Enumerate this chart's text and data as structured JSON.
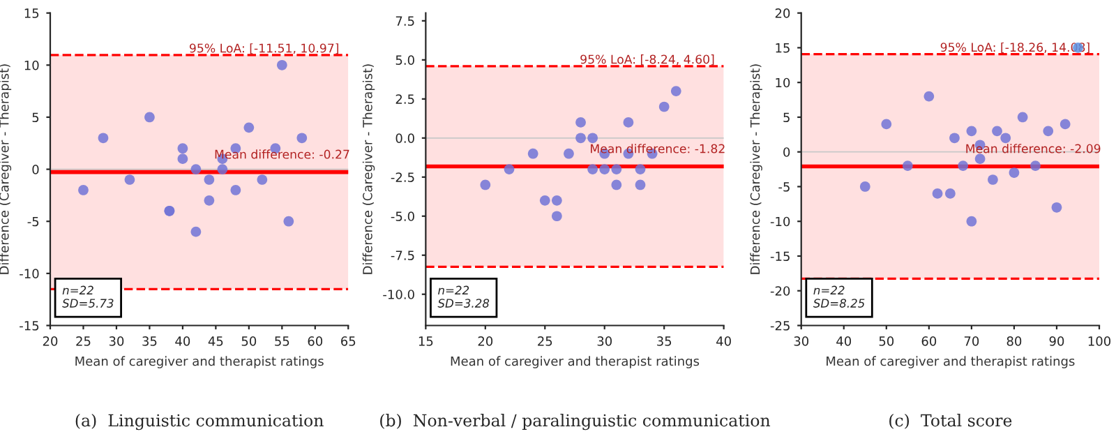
{
  "chart_data": [
    {
      "type": "scatter",
      "title": "(a)  Linguistic communication",
      "xlabel": "Mean of caregiver and therapist ratings",
      "ylabel": "Difference (Caregiver - Therapist)",
      "x": [
        25,
        28,
        32,
        35,
        38,
        38,
        40,
        40,
        42,
        42,
        44,
        44,
        46,
        46,
        48,
        48,
        50,
        52,
        54,
        55,
        56,
        58
      ],
      "values": [
        -2,
        3,
        -1,
        5,
        -4,
        -4,
        2,
        1,
        0,
        -6,
        -1,
        -3,
        1,
        0,
        2,
        -2,
        4,
        -1,
        2,
        10,
        -5,
        3
      ],
      "color": "#7173d6",
      "marker": "circle",
      "xlim": [
        20,
        65
      ],
      "xticks": [
        20,
        25,
        30,
        35,
        40,
        45,
        50,
        55,
        60,
        65
      ],
      "ylim": [
        -15,
        15
      ],
      "yticks": [
        -15,
        -10,
        -5,
        0,
        5,
        10,
        15
      ],
      "ref_lines": [
        {
          "axis": "y",
          "value": 0,
          "color": "#c8c8c8",
          "line_style": "solid"
        },
        {
          "axis": "y",
          "value": -0.27,
          "label": "Mean difference: -0.27",
          "color": "#ff0000",
          "line_style": "solid"
        },
        {
          "axis": "y",
          "value": -11.51,
          "color": "#ff0000",
          "line_style": "dashed"
        },
        {
          "axis": "y",
          "value": 10.97,
          "color": "#ff0000",
          "line_style": "dashed"
        }
      ],
      "bands": [
        {
          "axis": "y",
          "from": -11.51,
          "to": 10.97,
          "label": "95% LoA: [-11.51, 10.97]",
          "color": "#ffe0e0"
        }
      ],
      "annotations": [
        "n=22",
        "SD=5.73"
      ],
      "grid": false
    },
    {
      "type": "scatter",
      "title": "(b)  Non-verbal / paralinguistic communication",
      "xlabel": "Mean of caregiver and therapist ratings",
      "ylabel": "Difference (Caregiver - Therapist)",
      "x": [
        20,
        22,
        24,
        25,
        26,
        26,
        27,
        28,
        28,
        29,
        29,
        30,
        30,
        31,
        31,
        32,
        32,
        33,
        33,
        34,
        35,
        36
      ],
      "values": [
        -3,
        -2,
        -1,
        -4,
        -4,
        -5,
        -1,
        1,
        0,
        0,
        -2,
        -1,
        -2,
        -2,
        -3,
        1,
        -1,
        -2,
        -3,
        -1,
        2,
        3
      ],
      "color": "#7173d6",
      "marker": "circle",
      "xlim": [
        15,
        40
      ],
      "xticks": [
        15,
        20,
        25,
        30,
        35,
        40
      ],
      "ylim": [
        -12,
        8
      ],
      "yticks": [
        {
          "value": -10,
          "label": "-10.0"
        },
        {
          "value": -7.5,
          "label": "-7.5"
        },
        {
          "value": -5,
          "label": "-5.0"
        },
        {
          "value": -2.5,
          "label": "-2.5"
        },
        {
          "value": 0,
          "label": "0.0"
        },
        {
          "value": 2.5,
          "label": "2.5"
        },
        {
          "value": 5,
          "label": "5.0"
        },
        {
          "value": 7.5,
          "label": "7.5"
        }
      ],
      "ref_lines": [
        {
          "axis": "y",
          "value": 0,
          "color": "#c8c8c8",
          "line_style": "solid"
        },
        {
          "axis": "y",
          "value": -1.82,
          "label": "Mean difference: -1.82",
          "color": "#ff0000",
          "line_style": "solid"
        },
        {
          "axis": "y",
          "value": -8.24,
          "color": "#ff0000",
          "line_style": "dashed"
        },
        {
          "axis": "y",
          "value": 4.6,
          "color": "#ff0000",
          "line_style": "dashed"
        }
      ],
      "bands": [
        {
          "axis": "y",
          "from": -8.24,
          "to": 4.6,
          "label": "95% LoA: [-8.24, 4.60]",
          "color": "#ffe0e0"
        }
      ],
      "annotations": [
        "n=22",
        "SD=3.28"
      ],
      "grid": false
    },
    {
      "type": "scatter",
      "title": "(c)  Total score",
      "xlabel": "Mean of caregiver and therapist ratings",
      "ylabel": "Difference (Caregiver - Therapist)",
      "x": [
        45,
        50,
        55,
        60,
        62,
        65,
        66,
        68,
        70,
        70,
        72,
        72,
        75,
        76,
        78,
        80,
        82,
        85,
        88,
        90,
        92,
        95
      ],
      "values": [
        -5,
        4,
        -2,
        8,
        -6,
        -6,
        2,
        -2,
        3,
        -10,
        1,
        -1,
        -4,
        3,
        2,
        -3,
        5,
        -2,
        3,
        -8,
        4,
        15
      ],
      "colors": [
        "#7173d6",
        "#7173d6",
        "#7173d6",
        "#7173d6",
        "#7173d6",
        "#7173d6",
        "#7173d6",
        "#7173d6",
        "#7173d6",
        "#7173d6",
        "#7173d6",
        "#7173d6",
        "#7173d6",
        "#7173d6",
        "#7173d6",
        "#7173d6",
        "#7173d6",
        "#7173d6",
        "#7173d6",
        "#7173d6",
        "#7173d6",
        "#5c8fe0"
      ],
      "marker": "circle",
      "xlim": [
        30,
        100
      ],
      "xticks": [
        30,
        40,
        50,
        60,
        70,
        80,
        90,
        100
      ],
      "ylim": [
        -25,
        20
      ],
      "yticks": [
        -25,
        -20,
        -15,
        -10,
        -5,
        0,
        5,
        10,
        15,
        20
      ],
      "ref_lines": [
        {
          "axis": "y",
          "value": 0,
          "color": "#c8c8c8",
          "line_style": "solid"
        },
        {
          "axis": "y",
          "value": -2.09,
          "label": "Mean difference: -2.09",
          "color": "#ff0000",
          "line_style": "solid"
        },
        {
          "axis": "y",
          "value": -18.26,
          "color": "#ff0000",
          "line_style": "dashed"
        },
        {
          "axis": "y",
          "value": 14.08,
          "color": "#ff0000",
          "line_style": "dashed"
        }
      ],
      "bands": [
        {
          "axis": "y",
          "from": -18.26,
          "to": 14.08,
          "label": "95% LoA: [-18.26, 14.08]",
          "color": "#ffe0e0"
        }
      ],
      "annotations": [
        "n=22",
        "SD=8.25"
      ],
      "grid": false
    }
  ]
}
